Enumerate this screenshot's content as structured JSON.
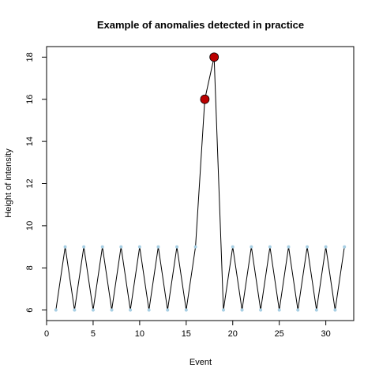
{
  "chart_data": {
    "type": "line",
    "title": "Example of anomalies detected in practice",
    "xlabel": "Event",
    "ylabel": "Height of intensity",
    "xlim": [
      0,
      33
    ],
    "ylim": [
      5.5,
      18.5
    ],
    "xticks": [
      0,
      5,
      10,
      15,
      20,
      25,
      30
    ],
    "yticks": [
      6,
      8,
      10,
      12,
      14,
      16,
      18
    ],
    "grid": false,
    "legend": "none",
    "series": [
      {
        "x": [
          1,
          2,
          3,
          4,
          5,
          6,
          7,
          8,
          9,
          10,
          11,
          12,
          13,
          14,
          15,
          16,
          17,
          18,
          19,
          20,
          21,
          22,
          23,
          24,
          25,
          26,
          27,
          28,
          29,
          30,
          31,
          32
        ],
        "values": [
          6,
          9,
          6,
          9,
          6,
          9,
          6,
          9,
          6,
          9,
          6,
          9,
          6,
          9,
          6,
          9,
          16,
          18,
          6,
          9,
          6,
          9,
          6,
          9,
          6,
          9,
          6,
          9,
          6,
          9,
          6,
          9
        ],
        "line_color": "#000000",
        "point_color": "#a6cee3"
      }
    ],
    "anomalies": {
      "x": [
        17,
        18
      ],
      "values": [
        16,
        18
      ],
      "color": "#bb0000"
    }
  }
}
